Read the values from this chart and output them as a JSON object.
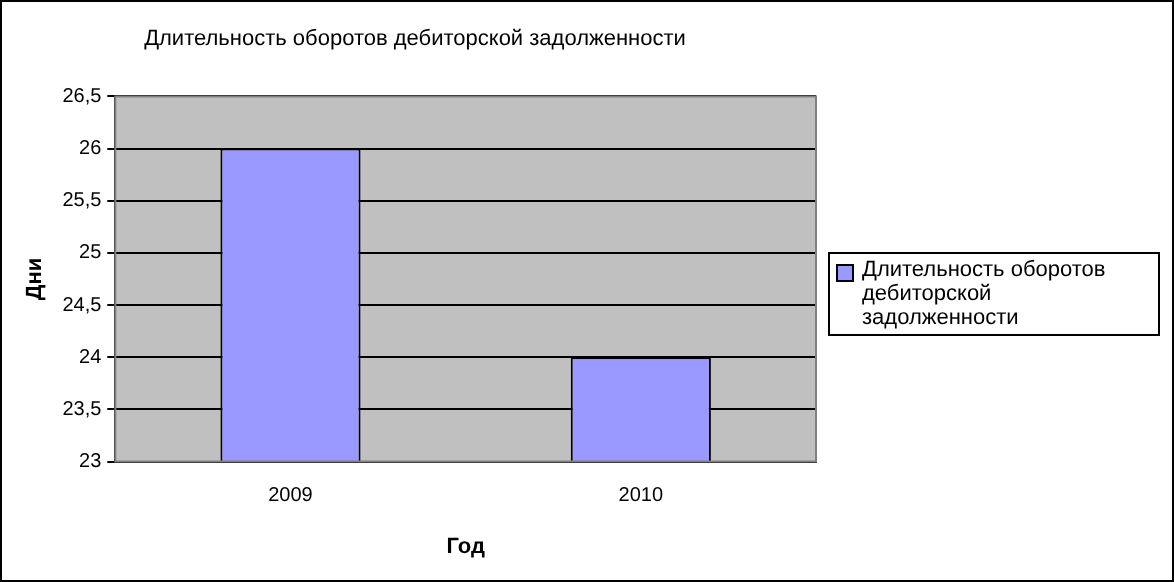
{
  "chart_data": {
    "type": "bar",
    "title": "Длительность оборотов дебиторской задолженности",
    "xlabel": "Год",
    "ylabel": "Дни",
    "categories": [
      "2009",
      "2010"
    ],
    "series": [
      {
        "name": "Длительность оборотов дебиторской задолженности",
        "color": "#9999ff",
        "values": [
          26,
          24
        ]
      }
    ],
    "ylim": [
      23,
      26.5
    ],
    "yticks": [
      23,
      {
        "value": 23.5,
        "label": "23,5"
      },
      24,
      {
        "value": 24.5,
        "label": "24,5"
      },
      25,
      {
        "value": 25.5,
        "label": "25,5"
      },
      26,
      {
        "value": 26.5,
        "label": "26,5"
      }
    ],
    "grid": "y",
    "legend": "right"
  }
}
